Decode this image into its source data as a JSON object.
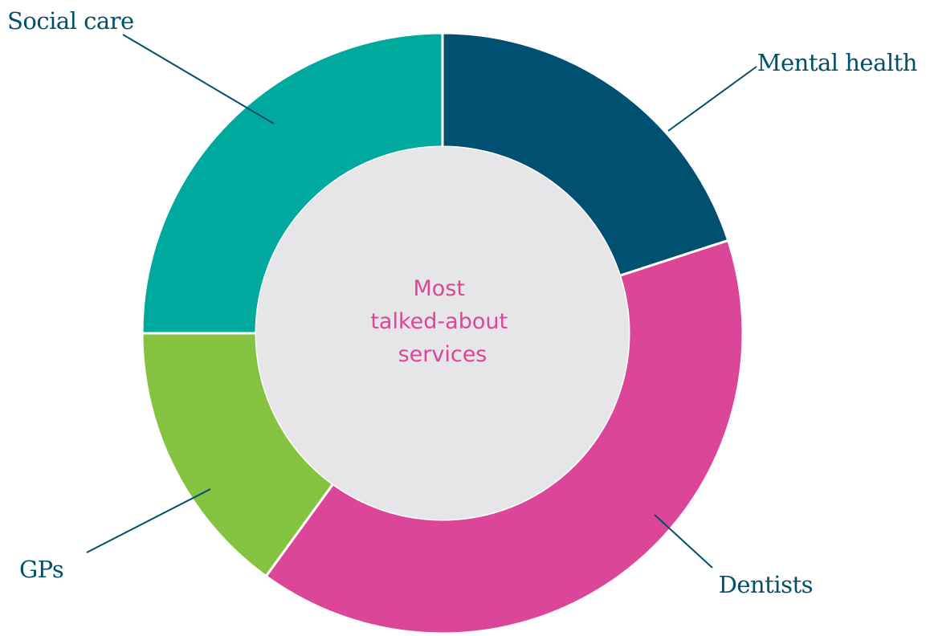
{
  "chart_data": {
    "type": "pie",
    "donut": true,
    "title": "",
    "center_label": [
      "Most",
      "talked-about",
      "services"
    ],
    "categories": [
      "Mental health",
      "Dentists",
      "GPs",
      "Social care"
    ],
    "values": [
      20,
      40,
      15,
      25
    ],
    "colors": [
      "#005072",
      "#db4699",
      "#84c340",
      "#00a99d"
    ],
    "label_color": "#00506b",
    "center_color": "#e6e6e8",
    "center_text_color": "#db4699",
    "legend": "none"
  }
}
